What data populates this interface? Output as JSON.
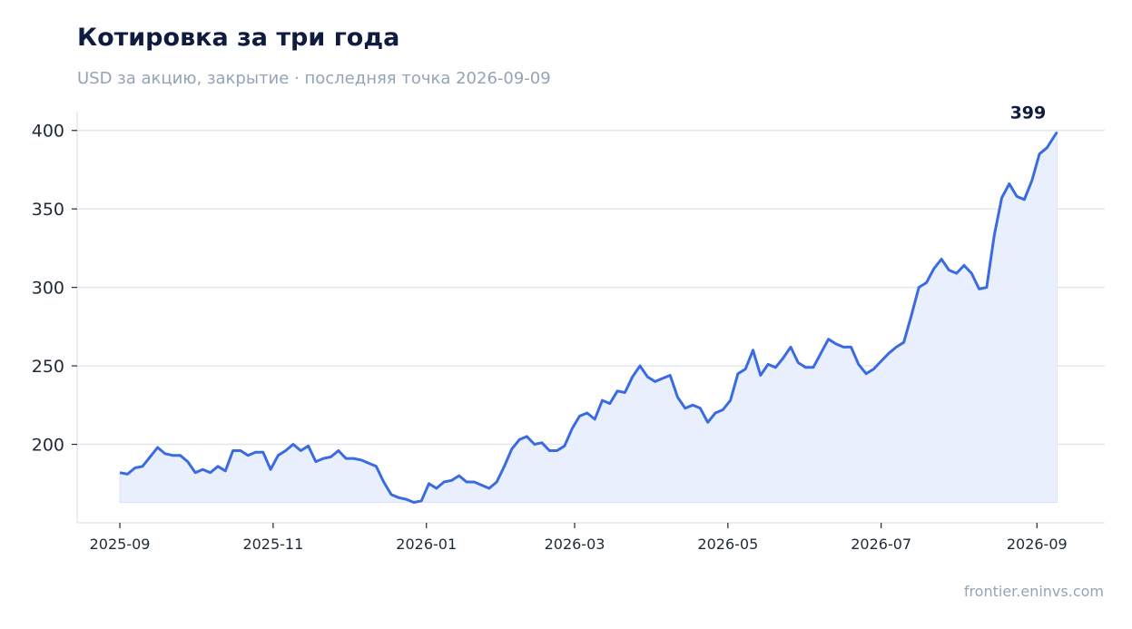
{
  "title": "Котировка за три года",
  "subtitle": "USD за акцию, закрытие · последняя точка 2026-09-09",
  "footer": "frontier.eninvs.com",
  "colors": {
    "line": "#3b6be0",
    "area": "#e9effc",
    "title": "#0f1c3f",
    "muted": "#94a3b8"
  },
  "chart_data": {
    "type": "area",
    "title": "Котировка за три года",
    "subtitle": "USD за акцию, закрытие · последняя точка 2026-09-09",
    "xlabel": "",
    "ylabel": "",
    "x_range": [
      "2025-08-15",
      "2026-09-28"
    ],
    "ylim": [
      150,
      412
    ],
    "yticks": [
      200,
      250,
      300,
      350,
      400
    ],
    "xticks": [
      "2025-09",
      "2025-11",
      "2026-01",
      "2026-03",
      "2026-05",
      "2026-07",
      "2026-09"
    ],
    "grid": "horizontal",
    "last_value_label": "399",
    "series": [
      {
        "points": [
          [
            "2025-09-01",
            182
          ],
          [
            "2025-09-04",
            181
          ],
          [
            "2025-09-07",
            185
          ],
          [
            "2025-09-10",
            186
          ],
          [
            "2025-09-13",
            192
          ],
          [
            "2025-09-16",
            198
          ],
          [
            "2025-09-19",
            194
          ],
          [
            "2025-09-22",
            193
          ],
          [
            "2025-09-25",
            193
          ],
          [
            "2025-09-28",
            189
          ],
          [
            "2025-10-01",
            182
          ],
          [
            "2025-10-04",
            184
          ],
          [
            "2025-10-07",
            182
          ],
          [
            "2025-10-10",
            186
          ],
          [
            "2025-10-13",
            183
          ],
          [
            "2025-10-16",
            196
          ],
          [
            "2025-10-19",
            196
          ],
          [
            "2025-10-22",
            193
          ],
          [
            "2025-10-25",
            195
          ],
          [
            "2025-10-28",
            195
          ],
          [
            "2025-10-31",
            184
          ],
          [
            "2025-11-03",
            193
          ],
          [
            "2025-11-06",
            196
          ],
          [
            "2025-11-09",
            200
          ],
          [
            "2025-11-12",
            196
          ],
          [
            "2025-11-15",
            199
          ],
          [
            "2025-11-18",
            189
          ],
          [
            "2025-11-21",
            191
          ],
          [
            "2025-11-24",
            192
          ],
          [
            "2025-11-27",
            196
          ],
          [
            "2025-11-30",
            191
          ],
          [
            "2025-12-03",
            191
          ],
          [
            "2025-12-06",
            190
          ],
          [
            "2025-12-09",
            188
          ],
          [
            "2025-12-12",
            186
          ],
          [
            "2025-12-15",
            176
          ],
          [
            "2025-12-18",
            168
          ],
          [
            "2025-12-21",
            166
          ],
          [
            "2025-12-24",
            165
          ],
          [
            "2025-12-27",
            163
          ],
          [
            "2025-12-30",
            164
          ],
          [
            "2026-01-02",
            175
          ],
          [
            "2026-01-05",
            172
          ],
          [
            "2026-01-08",
            176
          ],
          [
            "2026-01-11",
            177
          ],
          [
            "2026-01-14",
            180
          ],
          [
            "2026-01-17",
            176
          ],
          [
            "2026-01-20",
            176
          ],
          [
            "2026-01-23",
            174
          ],
          [
            "2026-01-26",
            172
          ],
          [
            "2026-01-29",
            176
          ],
          [
            "2026-02-01",
            186
          ],
          [
            "2026-02-04",
            197
          ],
          [
            "2026-02-07",
            203
          ],
          [
            "2026-02-10",
            205
          ],
          [
            "2026-02-13",
            200
          ],
          [
            "2026-02-16",
            201
          ],
          [
            "2026-02-19",
            196
          ],
          [
            "2026-02-22",
            196
          ],
          [
            "2026-02-25",
            199
          ],
          [
            "2026-02-28",
            210
          ],
          [
            "2026-03-03",
            218
          ],
          [
            "2026-03-06",
            220
          ],
          [
            "2026-03-09",
            216
          ],
          [
            "2026-03-12",
            228
          ],
          [
            "2026-03-15",
            226
          ],
          [
            "2026-03-18",
            234
          ],
          [
            "2026-03-21",
            233
          ],
          [
            "2026-03-24",
            243
          ],
          [
            "2026-03-27",
            250
          ],
          [
            "2026-03-30",
            243
          ],
          [
            "2026-04-02",
            240
          ],
          [
            "2026-04-05",
            242
          ],
          [
            "2026-04-08",
            244
          ],
          [
            "2026-04-11",
            230
          ],
          [
            "2026-04-14",
            223
          ],
          [
            "2026-04-17",
            225
          ],
          [
            "2026-04-20",
            223
          ],
          [
            "2026-04-23",
            214
          ],
          [
            "2026-04-26",
            220
          ],
          [
            "2026-04-29",
            222
          ],
          [
            "2026-05-02",
            228
          ],
          [
            "2026-05-05",
            245
          ],
          [
            "2026-05-08",
            248
          ],
          [
            "2026-05-11",
            260
          ],
          [
            "2026-05-14",
            244
          ],
          [
            "2026-05-17",
            251
          ],
          [
            "2026-05-20",
            249
          ],
          [
            "2026-05-23",
            255
          ],
          [
            "2026-05-26",
            262
          ],
          [
            "2026-05-29",
            252
          ],
          [
            "2026-06-01",
            249
          ],
          [
            "2026-06-04",
            249
          ],
          [
            "2026-06-07",
            258
          ],
          [
            "2026-06-10",
            267
          ],
          [
            "2026-06-13",
            264
          ],
          [
            "2026-06-16",
            262
          ],
          [
            "2026-06-19",
            262
          ],
          [
            "2026-06-22",
            251
          ],
          [
            "2026-06-25",
            245
          ],
          [
            "2026-06-28",
            248
          ],
          [
            "2026-07-01",
            253
          ],
          [
            "2026-07-04",
            258
          ],
          [
            "2026-07-07",
            262
          ],
          [
            "2026-07-10",
            265
          ],
          [
            "2026-07-13",
            282
          ],
          [
            "2026-07-16",
            300
          ],
          [
            "2026-07-19",
            303
          ],
          [
            "2026-07-22",
            312
          ],
          [
            "2026-07-25",
            318
          ],
          [
            "2026-07-28",
            311
          ],
          [
            "2026-07-31",
            309
          ],
          [
            "2026-08-03",
            314
          ],
          [
            "2026-08-06",
            309
          ],
          [
            "2026-08-09",
            299
          ],
          [
            "2026-08-12",
            300
          ],
          [
            "2026-08-15",
            333
          ],
          [
            "2026-08-18",
            357
          ],
          [
            "2026-08-21",
            366
          ],
          [
            "2026-08-24",
            358
          ],
          [
            "2026-08-27",
            356
          ],
          [
            "2026-08-30",
            368
          ],
          [
            "2026-09-02",
            385
          ],
          [
            "2026-09-05",
            389
          ],
          [
            "2026-09-09",
            399
          ]
        ]
      }
    ]
  }
}
